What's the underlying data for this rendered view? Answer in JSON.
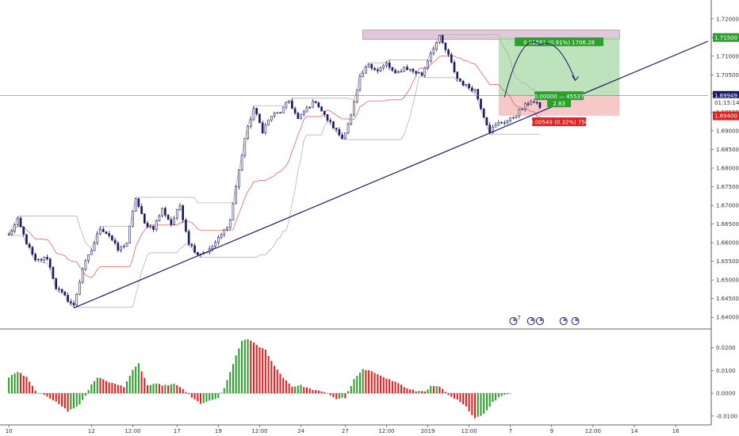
{
  "colors": {
    "background": "#ffffff",
    "candle": "#1b1a66",
    "basis": "#e05252",
    "channel": "#a8a8a8",
    "trendline": "#1b1a66",
    "profit_zone": "#a8d8a6",
    "loss_zone": "#f3b6b6",
    "resistance_zone": "#d9bfd4",
    "hist_up": "#2e9e2e",
    "hist_down": "#e02020",
    "price_tag_current": "#1b1a66",
    "price_tag_target": "#2e9e2e",
    "price_tag_stop": "#e02020"
  },
  "chart_data": [
    {
      "type": "candlestick",
      "title": "",
      "ylim": [
        1.6375,
        1.7225
      ],
      "y_ticks": [
        "1.72000",
        "1.71500",
        "1.71000",
        "1.70500",
        "1.70000",
        "1.69500",
        "1.69000",
        "1.68500",
        "1.68000",
        "1.67500",
        "1.67000",
        "1.66500",
        "1.66000",
        "1.65500",
        "1.65000",
        "1.64500",
        "1.64000"
      ],
      "x_ticks": [
        "10",
        "12",
        "12:00",
        "17",
        "19",
        "12:00",
        "24",
        "27",
        "12:00",
        "2019",
        "12:00",
        "7",
        "9",
        "12:00",
        "14",
        "16"
      ],
      "x_tick_positions": [
        0,
        28,
        42,
        57,
        71,
        85,
        99,
        114,
        128,
        142,
        156,
        170,
        184,
        198,
        212,
        226
      ],
      "x_range": [
        -3,
        237
      ],
      "last_bar": 180,
      "anchors": [
        [
          0,
          1.662
        ],
        [
          3,
          1.666
        ],
        [
          6,
          1.66
        ],
        [
          9,
          1.655
        ],
        [
          13,
          1.656
        ],
        [
          16,
          1.648
        ],
        [
          22,
          1.643
        ],
        [
          25,
          1.653
        ],
        [
          28,
          1.658
        ],
        [
          31,
          1.664
        ],
        [
          34,
          1.662
        ],
        [
          37,
          1.658
        ],
        [
          40,
          1.66
        ],
        [
          43,
          1.672
        ],
        [
          46,
          1.665
        ],
        [
          49,
          1.664
        ],
        [
          52,
          1.669
        ],
        [
          55,
          1.665
        ],
        [
          58,
          1.67
        ],
        [
          61,
          1.66
        ],
        [
          64,
          1.657
        ],
        [
          68,
          1.658
        ],
        [
          72,
          1.662
        ],
        [
          75,
          1.666
        ],
        [
          77,
          1.675
        ],
        [
          80,
          1.688
        ],
        [
          83,
          1.696
        ],
        [
          86,
          1.69
        ],
        [
          89,
          1.694
        ],
        [
          92,
          1.695
        ],
        [
          95,
          1.698
        ],
        [
          98,
          1.693
        ],
        [
          101,
          1.696
        ],
        [
          104,
          1.698
        ],
        [
          107,
          1.694
        ],
        [
          110,
          1.691
        ],
        [
          113,
          1.688
        ],
        [
          116,
          1.694
        ],
        [
          119,
          1.704
        ],
        [
          122,
          1.708
        ],
        [
          125,
          1.706
        ],
        [
          128,
          1.708
        ],
        [
          131,
          1.705
        ],
        [
          134,
          1.707
        ],
        [
          137,
          1.706
        ],
        [
          140,
          1.705
        ],
        [
          143,
          1.711
        ],
        [
          146,
          1.715
        ],
        [
          149,
          1.71
        ],
        [
          152,
          1.704
        ],
        [
          155,
          1.702
        ],
        [
          158,
          1.701
        ],
        [
          161,
          1.694
        ],
        [
          163,
          1.69
        ],
        [
          166,
          1.692
        ],
        [
          170,
          1.693
        ],
        [
          174,
          1.696
        ],
        [
          177,
          1.698
        ],
        [
          180,
          1.6965
        ]
      ],
      "horizontal_line": {
        "price": 1.69949,
        "label": "1.69949"
      },
      "trendline": {
        "x1": 22,
        "y1": 1.6425,
        "x2": 237,
        "y2": 1.714
      },
      "donchian_channel_lookback": 20,
      "resistance_zone": {
        "x1": 120,
        "x2": 207,
        "y1": 1.7145,
        "y2": 1.717
      },
      "position": {
        "x1": 166,
        "x2": 207,
        "entry": 1.69949,
        "target": 1.715,
        "stop": 1.694,
        "target_label": "0.01551 (0.91%) 1706.28",
        "entry_label": "0.00000 — 45537",
        "ratio_label": "2.83",
        "stop_label": "0.00549 (0.32%) 750"
      },
      "price_tags": [
        {
          "price": 1.715,
          "label": "1.71500",
          "kind": "target"
        },
        {
          "price": 1.69949,
          "label": "1.69949",
          "kind": "current"
        },
        {
          "price": 1.694,
          "label": "1.69400",
          "kind": "stop"
        }
      ],
      "countdown": "01:15:14",
      "projection_arrow": {
        "x_start": 168,
        "x_peak": 180,
        "x_end": 192,
        "y_start": 1.699,
        "y_peak": 1.713,
        "y_end": 1.7035
      },
      "event_icons": [
        {
          "x": 171,
          "glyph": "7"
        },
        {
          "x": 177,
          "glyph": ""
        },
        {
          "x": 180,
          "glyph": ""
        },
        {
          "x": 188,
          "glyph": ""
        },
        {
          "x": 192,
          "glyph": ""
        }
      ]
    },
    {
      "type": "histogram",
      "title": "",
      "ylim": [
        -0.0125,
        0.0265
      ],
      "y_ticks": [
        "0.0200",
        "0.0100",
        "0.0000",
        "-0.0100"
      ],
      "anchors": [
        [
          0,
          0.007
        ],
        [
          3,
          0.0095
        ],
        [
          6,
          0.007
        ],
        [
          9,
          0.001
        ],
        [
          12,
          -0.001
        ],
        [
          16,
          -0.0035
        ],
        [
          20,
          -0.008
        ],
        [
          24,
          -0.005
        ],
        [
          26,
          -0.001
        ],
        [
          28,
          0.004
        ],
        [
          30,
          0.007
        ],
        [
          33,
          0.0055
        ],
        [
          36,
          0.004
        ],
        [
          39,
          0.003
        ],
        [
          42,
          0.01
        ],
        [
          44,
          0.013
        ],
        [
          47,
          0.0035
        ],
        [
          50,
          0.004
        ],
        [
          53,
          0.0035
        ],
        [
          56,
          0.004
        ],
        [
          59,
          0.002
        ],
        [
          62,
          -0.002
        ],
        [
          65,
          -0.0045
        ],
        [
          68,
          -0.0035
        ],
        [
          71,
          -0.002
        ],
        [
          73,
          0.002
        ],
        [
          76,
          0.013
        ],
        [
          79,
          0.023
        ],
        [
          81,
          0.024
        ],
        [
          84,
          0.021
        ],
        [
          87,
          0.019
        ],
        [
          90,
          0.012
        ],
        [
          93,
          0.007
        ],
        [
          96,
          0.003
        ],
        [
          99,
          0.0035
        ],
        [
          102,
          0.002
        ],
        [
          105,
          0.001
        ],
        [
          108,
          0.0
        ],
        [
          111,
          -0.0025
        ],
        [
          114,
          -0.002
        ],
        [
          117,
          0.006
        ],
        [
          120,
          0.0105
        ],
        [
          123,
          0.0095
        ],
        [
          126,
          0.008
        ],
        [
          129,
          0.006
        ],
        [
          132,
          0.0045
        ],
        [
          135,
          0.002
        ],
        [
          138,
          0.001
        ],
        [
          141,
          0.001
        ],
        [
          143,
          0.003
        ],
        [
          146,
          0.003
        ],
        [
          149,
          -0.001
        ],
        [
          152,
          -0.003
        ],
        [
          155,
          -0.006
        ],
        [
          158,
          -0.011
        ],
        [
          161,
          -0.009
        ],
        [
          164,
          -0.004
        ],
        [
          167,
          -0.001
        ],
        [
          170,
          0.0
        ]
      ]
    }
  ]
}
